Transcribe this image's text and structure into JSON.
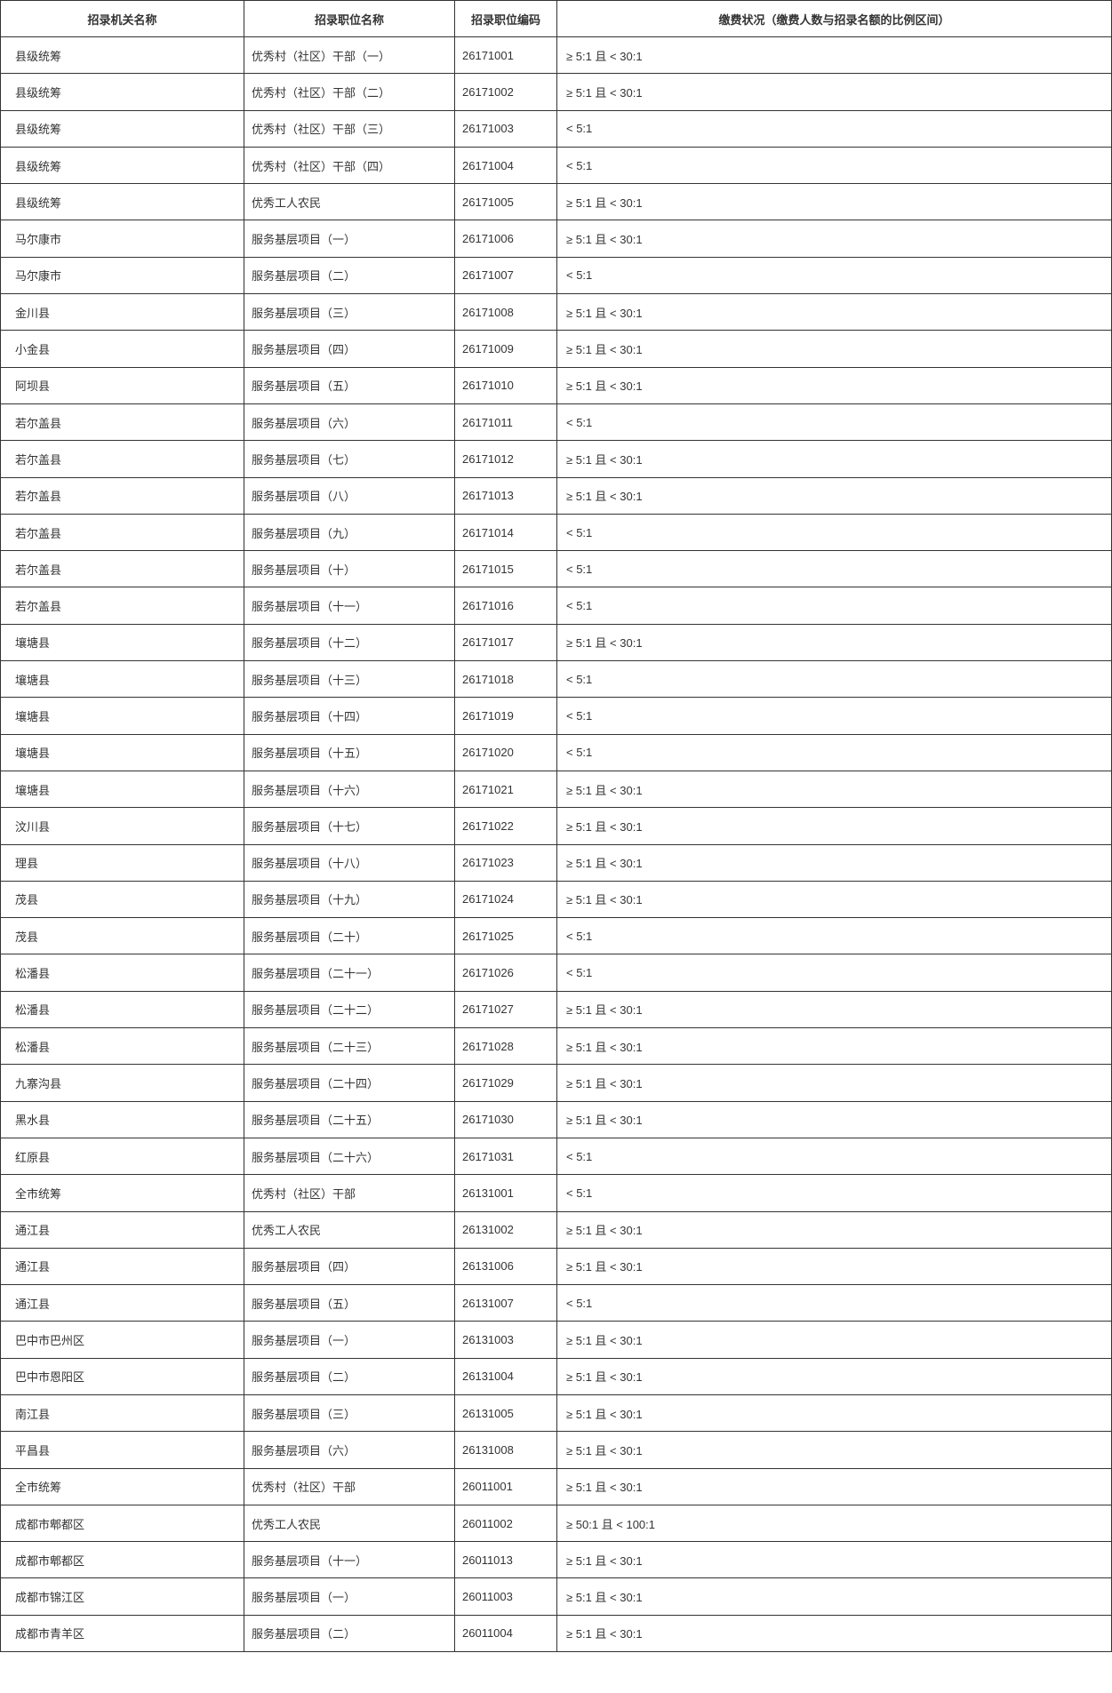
{
  "colors": {
    "border": "#333333",
    "text": "#333333",
    "background": "#ffffff"
  },
  "table": {
    "columns": [
      "招录机关名称",
      "招录职位名称",
      "招录职位编码",
      "缴费状况（缴费人数与招录名额的比例区间）"
    ],
    "rows": [
      [
        "县级统筹",
        "优秀村（社区）干部（一）",
        "26171001",
        "≥ 5:1 且 < 30:1"
      ],
      [
        "县级统筹",
        "优秀村（社区）干部（二）",
        "26171002",
        "≥ 5:1 且 < 30:1"
      ],
      [
        "县级统筹",
        "优秀村（社区）干部（三）",
        "26171003",
        "< 5:1"
      ],
      [
        "县级统筹",
        "优秀村（社区）干部（四）",
        "26171004",
        "< 5:1"
      ],
      [
        "县级统筹",
        "优秀工人农民",
        "26171005",
        "≥ 5:1 且 < 30:1"
      ],
      [
        "马尔康市",
        "服务基层项目（一）",
        "26171006",
        "≥ 5:1 且 < 30:1"
      ],
      [
        "马尔康市",
        "服务基层项目（二）",
        "26171007",
        "< 5:1"
      ],
      [
        "金川县",
        "服务基层项目（三）",
        "26171008",
        "≥ 5:1 且 < 30:1"
      ],
      [
        "小金县",
        "服务基层项目（四）",
        "26171009",
        "≥ 5:1 且 < 30:1"
      ],
      [
        "阿坝县",
        "服务基层项目（五）",
        "26171010",
        "≥ 5:1 且 < 30:1"
      ],
      [
        "若尔盖县",
        "服务基层项目（六）",
        "26171011",
        "< 5:1"
      ],
      [
        "若尔盖县",
        "服务基层项目（七）",
        "26171012",
        "≥ 5:1 且 < 30:1"
      ],
      [
        "若尔盖县",
        "服务基层项目（八）",
        "26171013",
        "≥ 5:1 且 < 30:1"
      ],
      [
        "若尔盖县",
        "服务基层项目（九）",
        "26171014",
        "< 5:1"
      ],
      [
        "若尔盖县",
        "服务基层项目（十）",
        "26171015",
        "< 5:1"
      ],
      [
        "若尔盖县",
        "服务基层项目（十一）",
        "26171016",
        "< 5:1"
      ],
      [
        "壤塘县",
        "服务基层项目（十二）",
        "26171017",
        "≥ 5:1 且 < 30:1"
      ],
      [
        "壤塘县",
        "服务基层项目（十三）",
        "26171018",
        "< 5:1"
      ],
      [
        "壤塘县",
        "服务基层项目（十四）",
        "26171019",
        "< 5:1"
      ],
      [
        "壤塘县",
        "服务基层项目（十五）",
        "26171020",
        "< 5:1"
      ],
      [
        "壤塘县",
        "服务基层项目（十六）",
        "26171021",
        "≥ 5:1 且 < 30:1"
      ],
      [
        "汶川县",
        "服务基层项目（十七）",
        "26171022",
        "≥ 5:1 且 < 30:1"
      ],
      [
        "理县",
        "服务基层项目（十八）",
        "26171023",
        "≥ 5:1 且 < 30:1"
      ],
      [
        "茂县",
        "服务基层项目（十九）",
        "26171024",
        "≥ 5:1 且 < 30:1"
      ],
      [
        "茂县",
        "服务基层项目（二十）",
        "26171025",
        "< 5:1"
      ],
      [
        "松潘县",
        "服务基层项目（二十一）",
        "26171026",
        "< 5:1"
      ],
      [
        "松潘县",
        "服务基层项目（二十二）",
        "26171027",
        "≥ 5:1 且 < 30:1"
      ],
      [
        "松潘县",
        "服务基层项目（二十三）",
        "26171028",
        "≥ 5:1 且 < 30:1"
      ],
      [
        "九寨沟县",
        "服务基层项目（二十四）",
        "26171029",
        "≥ 5:1 且 < 30:1"
      ],
      [
        "黑水县",
        "服务基层项目（二十五）",
        "26171030",
        "≥ 5:1 且 < 30:1"
      ],
      [
        "红原县",
        "服务基层项目（二十六）",
        "26171031",
        "< 5:1"
      ],
      [
        "全市统筹",
        "优秀村（社区）干部",
        "26131001",
        "< 5:1"
      ],
      [
        "通江县",
        "优秀工人农民",
        "26131002",
        "≥ 5:1 且 < 30:1"
      ],
      [
        "通江县",
        "服务基层项目（四）",
        "26131006",
        "≥ 5:1 且 < 30:1"
      ],
      [
        "通江县",
        "服务基层项目（五）",
        "26131007",
        "< 5:1"
      ],
      [
        "巴中市巴州区",
        "服务基层项目（一）",
        "26131003",
        "≥ 5:1 且 < 30:1"
      ],
      [
        "巴中市恩阳区",
        "服务基层项目（二）",
        "26131004",
        "≥ 5:1 且 < 30:1"
      ],
      [
        "南江县",
        "服务基层项目（三）",
        "26131005",
        "≥ 5:1 且 < 30:1"
      ],
      [
        "平昌县",
        "服务基层项目（六）",
        "26131008",
        "≥ 5:1 且 < 30:1"
      ],
      [
        "全市统筹",
        "优秀村（社区）干部",
        "26011001",
        "≥ 5:1 且 < 30:1"
      ],
      [
        "成都市郫都区",
        "优秀工人农民",
        "26011002",
        "≥ 50:1 且 < 100:1"
      ],
      [
        "成都市郫都区",
        "服务基层项目（十一）",
        "26011013",
        "≥ 5:1 且 < 30:1"
      ],
      [
        "成都市锦江区",
        "服务基层项目（一）",
        "26011003",
        "≥ 5:1 且 < 30:1"
      ],
      [
        "成都市青羊区",
        "服务基层项目（二）",
        "26011004",
        "≥ 5:1 且 < 30:1"
      ]
    ]
  }
}
